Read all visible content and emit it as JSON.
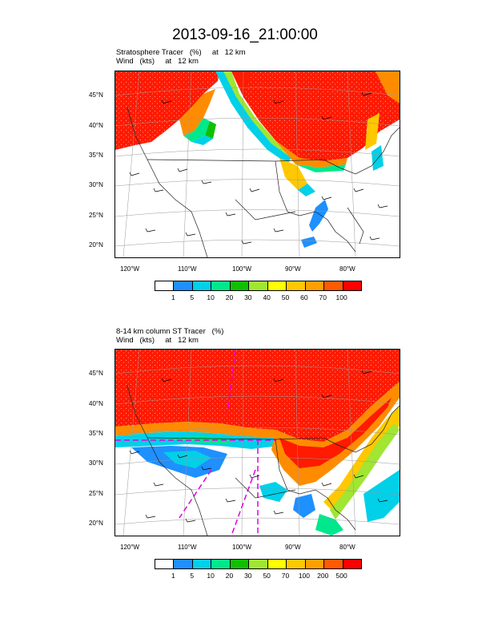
{
  "title": "2013-09-16_21:00:00",
  "panel1": {
    "line1": "Stratosphere Tracer   (%)     at   12 km",
    "line2": "Wind   (kts)     at   12 km",
    "lat_labels": [
      "45°N",
      "40°N",
      "35°N",
      "30°N",
      "25°N",
      "20°N"
    ],
    "lon_labels": [
      "120°W",
      "110°W",
      "100°W",
      "90°W",
      "80°W"
    ],
    "colorbar": {
      "colors": [
        "#ffffff",
        "#1e90ff",
        "#00d0e8",
        "#00e88c",
        "#10c000",
        "#a0e632",
        "#ffff00",
        "#ffc800",
        "#ffa000",
        "#ff5a00",
        "#ff0000"
      ],
      "labels": [
        "1",
        "5",
        "10",
        "20",
        "30",
        "40",
        "50",
        "60",
        "70",
        "100"
      ]
    }
  },
  "panel2": {
    "line1": "8-14 km column ST Tracer   (%)",
    "line2": "Wind   (kts)     at   12 km",
    "lat_labels": [
      "45°N",
      "40°N",
      "35°N",
      "30°N",
      "25°N",
      "20°N"
    ],
    "lon_labels": [
      "120°W",
      "110°W",
      "100°W",
      "90°W",
      "80°W"
    ],
    "colorbar": {
      "colors": [
        "#ffffff",
        "#1e90ff",
        "#00d0e8",
        "#00e88c",
        "#10c000",
        "#a0e632",
        "#ffff00",
        "#ffc800",
        "#ffa000",
        "#ff5a00",
        "#ff0000"
      ],
      "labels": [
        "1",
        "5",
        "10",
        "20",
        "30",
        "50",
        "70",
        "100",
        "200",
        "500"
      ]
    }
  }
}
